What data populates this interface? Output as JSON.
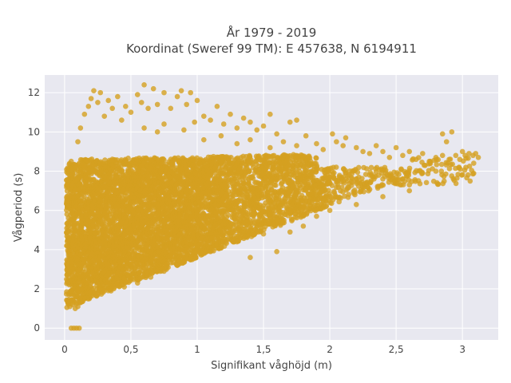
{
  "chart_data": {
    "type": "scatter",
    "title_lines": [
      "År 1979 - 2019",
      "Koordinat (Sweref 99 TM): E 457638, N 6194911"
    ],
    "xlabel": "Signifikant våghöjd (m)",
    "ylabel": "Vågperiod (s)",
    "xlim": [
      -0.15,
      3.27
    ],
    "ylim": [
      -0.6,
      12.9
    ],
    "x_ticks": [
      0,
      0.5,
      1,
      1.5,
      2,
      2.5,
      3
    ],
    "x_tick_labels": [
      "0",
      "0,5",
      "1",
      "1,5",
      "2",
      "2,5",
      "3"
    ],
    "y_ticks": [
      0,
      2,
      4,
      6,
      8,
      10,
      12
    ],
    "y_tick_labels": [
      "0",
      "2",
      "4",
      "6",
      "8",
      "10",
      "12"
    ],
    "grid": true,
    "marker_color": "#d4a020",
    "background_color": "#e8e8f0",
    "series": [
      {
        "points": [
          [
            0.05,
            0
          ],
          [
            0.07,
            0
          ],
          [
            0.09,
            0
          ],
          [
            0.11,
            0
          ],
          [
            0.02,
            4.2
          ],
          [
            0.02,
            6.5
          ],
          [
            0.02,
            7.3
          ],
          [
            0.03,
            8.0
          ],
          [
            0.05,
            8.5
          ],
          [
            0.04,
            1.4
          ],
          [
            0.05,
            1.9
          ],
          [
            0.06,
            1.2
          ],
          [
            0.08,
            1.0
          ],
          [
            0.1,
            1.1
          ],
          [
            0.12,
            1.3
          ],
          [
            0.1,
            9.5
          ],
          [
            0.12,
            10.2
          ],
          [
            0.15,
            10.9
          ],
          [
            0.18,
            11.3
          ],
          [
            0.2,
            11.7
          ],
          [
            0.22,
            12.1
          ],
          [
            0.25,
            11.5
          ],
          [
            0.27,
            12.0
          ],
          [
            0.3,
            10.8
          ],
          [
            0.33,
            11.6
          ],
          [
            0.36,
            11.2
          ],
          [
            0.4,
            11.8
          ],
          [
            0.43,
            10.6
          ],
          [
            0.46,
            11.3
          ],
          [
            0.5,
            11.0
          ],
          [
            0.55,
            11.9
          ],
          [
            0.58,
            11.5
          ],
          [
            0.6,
            12.4
          ],
          [
            0.63,
            11.2
          ],
          [
            0.67,
            12.2
          ],
          [
            0.7,
            11.4
          ],
          [
            0.75,
            12.0
          ],
          [
            0.8,
            11.2
          ],
          [
            0.85,
            11.8
          ],
          [
            0.88,
            12.1
          ],
          [
            0.92,
            11.4
          ],
          [
            0.95,
            12.0
          ],
          [
            1.0,
            11.6
          ],
          [
            1.05,
            10.8
          ],
          [
            1.1,
            10.6
          ],
          [
            1.15,
            11.3
          ],
          [
            1.2,
            10.4
          ],
          [
            1.25,
            10.9
          ],
          [
            1.3,
            10.2
          ],
          [
            1.35,
            10.7
          ],
          [
            1.4,
            10.5
          ],
          [
            1.45,
            10.1
          ],
          [
            1.5,
            10.3
          ],
          [
            1.55,
            10.9
          ],
          [
            1.6,
            9.9
          ],
          [
            1.7,
            10.5
          ],
          [
            1.75,
            10.6
          ],
          [
            0.6,
            10.2
          ],
          [
            0.7,
            10.0
          ],
          [
            0.75,
            10.4
          ],
          [
            0.9,
            10.1
          ],
          [
            0.98,
            10.5
          ],
          [
            1.05,
            9.6
          ],
          [
            1.18,
            9.8
          ],
          [
            1.3,
            9.4
          ],
          [
            1.4,
            9.6
          ],
          [
            1.55,
            9.2
          ],
          [
            1.65,
            9.5
          ],
          [
            1.75,
            9.3
          ],
          [
            1.82,
            9.8
          ],
          [
            1.9,
            9.4
          ],
          [
            1.95,
            9.1
          ],
          [
            2.02,
            9.9
          ],
          [
            2.05,
            9.5
          ],
          [
            2.1,
            9.3
          ],
          [
            2.12,
            9.7
          ],
          [
            2.2,
            9.2
          ],
          [
            2.25,
            9.0
          ],
          [
            2.3,
            8.9
          ],
          [
            2.35,
            9.3
          ],
          [
            2.4,
            9.0
          ],
          [
            2.45,
            8.7
          ],
          [
            2.5,
            9.2
          ],
          [
            2.55,
            8.8
          ],
          [
            2.6,
            9.0
          ],
          [
            2.65,
            8.6
          ],
          [
            2.7,
            8.9
          ],
          [
            2.75,
            8.5
          ],
          [
            2.8,
            8.7
          ],
          [
            2.85,
            8.8
          ],
          [
            2.88,
            9.5
          ],
          [
            2.9,
            8.6
          ],
          [
            2.95,
            8.8
          ],
          [
            2.98,
            8.6
          ],
          [
            3.0,
            9.0
          ],
          [
            3.02,
            8.8
          ],
          [
            3.05,
            8.9
          ],
          [
            3.08,
            8.8
          ],
          [
            3.1,
            8.9
          ],
          [
            3.12,
            8.7
          ],
          [
            2.92,
            10.0
          ],
          [
            2.85,
            9.9
          ],
          [
            2.0,
            7.4
          ],
          [
            2.1,
            7.7
          ],
          [
            2.2,
            7.6
          ],
          [
            2.3,
            7.8
          ],
          [
            2.4,
            7.6
          ],
          [
            2.5,
            7.4
          ],
          [
            2.6,
            7.3
          ],
          [
            2.7,
            7.9
          ],
          [
            2.8,
            8.0
          ],
          [
            1.8,
            5.2
          ],
          [
            1.9,
            5.7
          ],
          [
            1.7,
            4.9
          ],
          [
            1.5,
            4.8
          ],
          [
            1.3,
            4.4
          ],
          [
            1.1,
            3.9
          ],
          [
            0.95,
            3.5
          ],
          [
            0.85,
            3.2
          ],
          [
            0.75,
            2.9
          ],
          [
            0.65,
            2.6
          ],
          [
            0.55,
            2.3
          ],
          [
            0.45,
            2.1
          ],
          [
            0.35,
            1.9
          ],
          [
            0.25,
            1.7
          ],
          [
            1.6,
            3.9
          ],
          [
            1.4,
            3.6
          ],
          [
            2.0,
            6.0
          ],
          [
            2.2,
            6.3
          ],
          [
            2.4,
            6.7
          ],
          [
            2.6,
            7.0
          ]
        ]
      }
    ]
  }
}
